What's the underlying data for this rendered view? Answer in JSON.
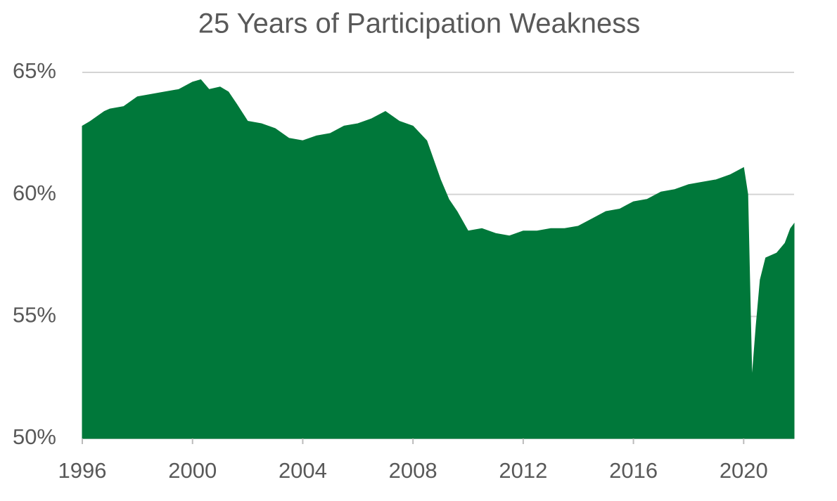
{
  "chart_data": {
    "type": "area",
    "title": "25 Years of Participation Weakness",
    "x": [
      1996.0,
      1996.3,
      1996.8,
      1997.0,
      1997.5,
      1998.0,
      1998.5,
      1999.0,
      1999.5,
      2000.0,
      2000.3,
      2000.6,
      2001.0,
      2001.3,
      2001.6,
      2002.0,
      2002.5,
      2003.0,
      2003.5,
      2004.0,
      2004.5,
      2005.0,
      2005.5,
      2006.0,
      2006.5,
      2007.0,
      2007.5,
      2008.0,
      2008.5,
      2009.0,
      2009.3,
      2009.6,
      2010.0,
      2010.5,
      2011.0,
      2011.5,
      2012.0,
      2012.5,
      2013.0,
      2013.5,
      2014.0,
      2014.5,
      2015.0,
      2015.5,
      2016.0,
      2016.5,
      2017.0,
      2017.5,
      2018.0,
      2018.5,
      2019.0,
      2019.5,
      2020.0,
      2020.15,
      2020.3,
      2020.45,
      2020.6,
      2020.8,
      2021.2,
      2021.5,
      2021.7,
      2021.83
    ],
    "series": [
      {
        "color": "#00783a",
        "values": [
          62.8,
          63.0,
          63.4,
          63.5,
          63.6,
          64.0,
          64.1,
          64.2,
          64.3,
          64.6,
          64.7,
          64.3,
          64.4,
          64.2,
          63.7,
          63.0,
          62.9,
          62.7,
          62.3,
          62.2,
          62.4,
          62.5,
          62.8,
          62.9,
          63.1,
          63.4,
          63.0,
          62.8,
          62.2,
          60.6,
          59.8,
          59.3,
          58.5,
          58.6,
          58.4,
          58.3,
          58.5,
          58.5,
          58.6,
          58.6,
          58.7,
          59.0,
          59.3,
          59.4,
          59.7,
          59.8,
          60.1,
          60.2,
          60.4,
          60.5,
          60.6,
          60.8,
          61.1,
          60.0,
          52.4,
          54.6,
          56.5,
          57.4,
          57.6,
          58.0,
          58.6,
          58.8
        ]
      }
    ],
    "xlim": [
      1996.0,
      2021.83
    ],
    "xticks": [
      1996,
      2000,
      2004,
      2008,
      2012,
      2016,
      2020
    ],
    "ylim": [
      50,
      65
    ],
    "yticks": [
      {
        "value": 50,
        "label": "50%"
      },
      {
        "value": 55,
        "label": "55%"
      },
      {
        "value": 60,
        "label": "60%"
      },
      {
        "value": 65,
        "label": "65%"
      }
    ],
    "grid": true
  }
}
